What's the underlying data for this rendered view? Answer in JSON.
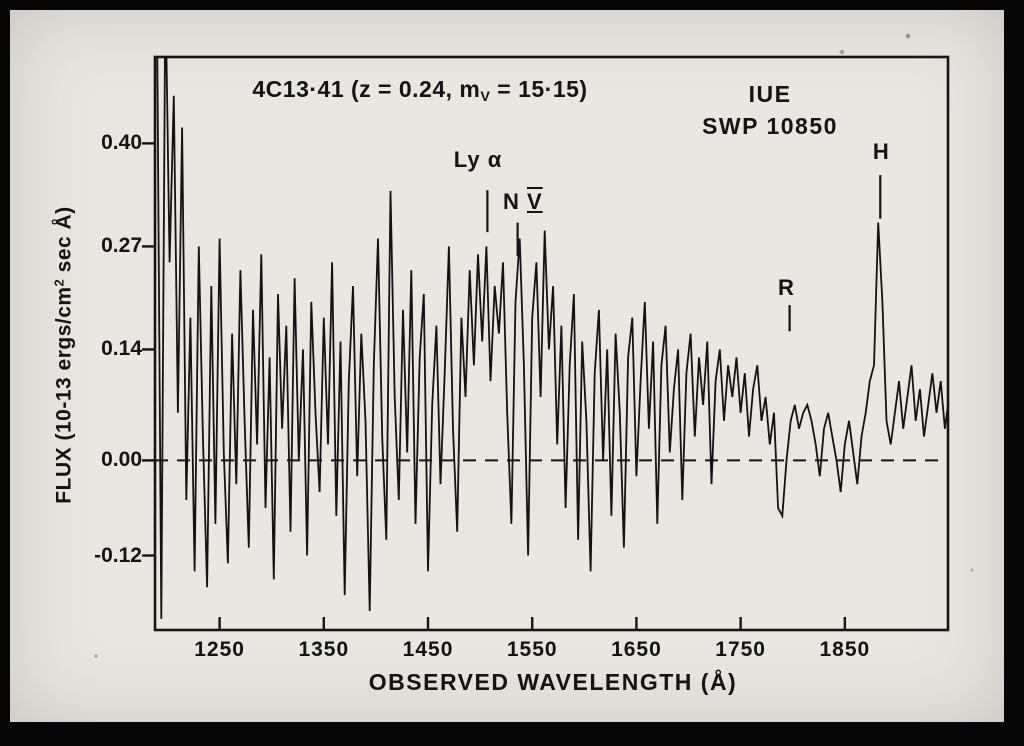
{
  "header": {
    "title_part1": "4C13·41 (z = 0.24, m",
    "title_sub": "V",
    "title_part2": " = 15·15)",
    "instrument": "IUE",
    "exposure": "SWP 10850"
  },
  "ylabel_parts": {
    "p1": "FLUX (10-13 ergs/cm",
    "sup": "2",
    "p2": " sec Å)"
  },
  "chart_data": {
    "type": "line",
    "title": "4C13.41 (z = 0.24, mV = 15.15) — IUE SWP 10850",
    "xlabel": "OBSERVED WAVELENGTH (Å)",
    "ylabel": "FLUX (10-13 ergs/cm2 sec Å)",
    "xlim": [
      1188,
      1949
    ],
    "ylim": [
      -0.214,
      0.509
    ],
    "x_ticks": [
      1250,
      1350,
      1450,
      1550,
      1650,
      1750,
      1850
    ],
    "y_ticks": [
      0.4,
      0.27,
      0.14,
      0.0,
      -0.12
    ],
    "y_tick_labels": [
      "0.40",
      "0.27",
      "0.14",
      "0.00",
      "-0.12"
    ],
    "zero_line": {
      "y": 0.0,
      "style": "dashed"
    },
    "grid": false,
    "legend": false,
    "series": [
      {
        "name": "IUE SWP 10850 spectrum",
        "x_start": 1190,
        "x_step": 4,
        "flux": [
          0.55,
          -0.2,
          0.6,
          0.25,
          0.46,
          0.06,
          0.42,
          -0.05,
          0.18,
          -0.14,
          0.27,
          0.03,
          -0.16,
          0.22,
          -0.08,
          0.28,
          0.01,
          -0.13,
          0.16,
          -0.03,
          0.24,
          0.05,
          -0.11,
          0.19,
          0.02,
          0.26,
          -0.06,
          0.13,
          -0.15,
          0.21,
          0.04,
          0.17,
          -0.09,
          0.23,
          0.0,
          0.14,
          -0.12,
          0.2,
          0.06,
          -0.04,
          0.18,
          0.02,
          0.25,
          -0.07,
          0.15,
          -0.17,
          0.1,
          0.22,
          -0.02,
          0.16,
          0.05,
          -0.19,
          0.12,
          0.28,
          0.03,
          -0.1,
          0.34,
          0.08,
          -0.05,
          0.19,
          0.01,
          0.24,
          -0.08,
          0.13,
          0.21,
          -0.14,
          0.07,
          0.17,
          -0.03,
          0.11,
          0.27,
          0.04,
          -0.09,
          0.18,
          0.08,
          0.24,
          0.12,
          0.26,
          0.15,
          0.27,
          0.1,
          0.22,
          0.16,
          0.25,
          0.06,
          -0.08,
          0.2,
          0.28,
          0.12,
          -0.12,
          0.18,
          0.25,
          0.08,
          0.29,
          0.14,
          0.22,
          0.02,
          0.17,
          -0.06,
          0.12,
          0.21,
          -0.1,
          0.15,
          0.05,
          -0.14,
          0.11,
          0.19,
          0.0,
          0.14,
          -0.07,
          0.16,
          0.06,
          -0.11,
          0.13,
          0.18,
          -0.02,
          0.1,
          0.2,
          0.04,
          0.15,
          -0.08,
          0.12,
          0.17,
          0.01,
          0.09,
          0.14,
          -0.05,
          0.11,
          0.16,
          0.03,
          0.13,
          0.07,
          0.15,
          -0.03,
          0.1,
          0.14,
          0.05,
          0.12,
          0.08,
          0.13,
          0.06,
          0.11,
          0.03,
          0.09,
          0.12,
          0.05,
          0.08,
          0.02,
          0.06,
          -0.06,
          -0.07,
          0.0,
          0.05,
          0.07,
          0.04,
          0.06,
          0.07,
          0.05,
          0.02,
          -0.02,
          0.04,
          0.06,
          0.03,
          0.0,
          -0.04,
          0.02,
          0.05,
          0.01,
          -0.03,
          0.03,
          0.06,
          0.1,
          0.12,
          0.3,
          0.2,
          0.05,
          0.02,
          0.06,
          0.1,
          0.04,
          0.08,
          0.12,
          0.05,
          0.09,
          0.03,
          0.07,
          0.11,
          0.06,
          0.1,
          0.04,
          0.08
        ]
      }
    ],
    "annotations": [
      {
        "label": "Ly α",
        "label_wl": 1498,
        "label_flux": 0.379,
        "line_wl": 1507,
        "line_flux": [
          0.341,
          0.288
        ]
      },
      {
        "label": "N ",
        "roman": "V",
        "label_wl": 1541,
        "label_flux": 0.326,
        "line_wl": 1536,
        "line_flux": [
          0.3,
          0.258
        ]
      },
      {
        "label": "R",
        "label_wl": 1794,
        "label_flux": 0.217,
        "line_wl": 1797,
        "line_flux": [
          0.196,
          0.163
        ]
      },
      {
        "label": "H",
        "label_wl": 1885,
        "label_flux": 0.389,
        "line_wl": 1884,
        "line_flux": [
          0.36,
          0.305
        ]
      }
    ]
  }
}
